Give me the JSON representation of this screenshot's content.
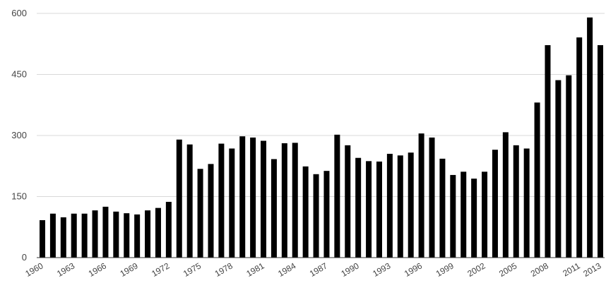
{
  "chart_data": {
    "type": "bar",
    "title": "",
    "xlabel": "",
    "ylabel": "",
    "ylim": [
      0,
      600
    ],
    "yticks": [
      0,
      150,
      300,
      450,
      600
    ],
    "grid": true,
    "bar_color": "#000000",
    "grid_color": "#d9d9d9",
    "categories": [
      "1960",
      "1961",
      "1962",
      "1963",
      "1964",
      "1965",
      "1966",
      "1967",
      "1968",
      "1969",
      "1970",
      "1971",
      "1972",
      "1973",
      "1974",
      "1975",
      "1976",
      "1977",
      "1978",
      "1979",
      "1980",
      "1981",
      "1982",
      "1983",
      "1984",
      "1985",
      "1986",
      "1987",
      "1988",
      "1989",
      "1990",
      "1991",
      "1992",
      "1993",
      "1994",
      "1995",
      "1996",
      "1997",
      "1998",
      "1999",
      "2000",
      "2001",
      "2002",
      "2003",
      "2004",
      "2005",
      "2006",
      "2007",
      "2008",
      "2009",
      "2010",
      "2011",
      "2012",
      "2013"
    ],
    "xtick_labels": [
      "1960",
      "1963",
      "1966",
      "1969",
      "1972",
      "1975",
      "1978",
      "1981",
      "1984",
      "1987",
      "1990",
      "1993",
      "1996",
      "1999",
      "2002",
      "2005",
      "2008",
      "2011",
      "2013"
    ],
    "values": [
      92,
      108,
      99,
      108,
      108,
      116,
      125,
      113,
      109,
      106,
      116,
      122,
      137,
      290,
      278,
      218,
      230,
      280,
      268,
      298,
      295,
      287,
      242,
      281,
      282,
      224,
      205,
      213,
      302,
      276,
      245,
      237,
      236,
      255,
      251,
      258,
      305,
      295,
      243,
      203,
      211,
      194,
      211,
      265,
      308,
      276,
      268,
      381,
      522,
      436,
      448,
      541,
      590,
      522
    ]
  }
}
